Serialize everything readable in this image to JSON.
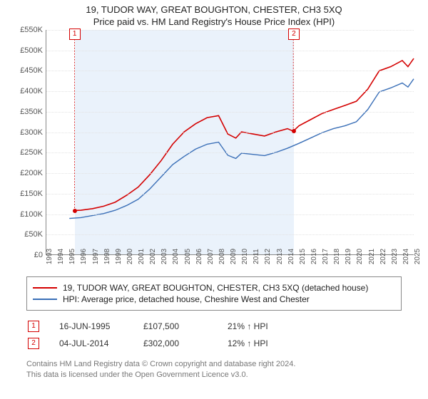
{
  "title_main": "19, TUDOR WAY, GREAT BOUGHTON, CHESTER, CH3 5XQ",
  "title_sub": "Price paid vs. HM Land Registry's House Price Index (HPI)",
  "chart": {
    "type": "line",
    "background_color": "#ffffff",
    "shaded_region_color": "#eaf2fb",
    "grid_color": "#e2e2e2",
    "axis_color": "#888888",
    "x_years": [
      1993,
      1994,
      1995,
      1996,
      1997,
      1998,
      1999,
      2000,
      2001,
      2002,
      2003,
      2004,
      2005,
      2006,
      2007,
      2008,
      2009,
      2010,
      2011,
      2012,
      2013,
      2014,
      2015,
      2016,
      2017,
      2018,
      2019,
      2020,
      2021,
      2022,
      2023,
      2024,
      2025
    ],
    "x_lim": [
      1993,
      2025
    ],
    "y_lim": [
      0,
      550000
    ],
    "y_tick_step": 50000,
    "y_tick_prefix": "£",
    "y_tick_suffix": "K",
    "x_label_fontsize": 10,
    "y_label_fontsize": 11,
    "shaded_region_x": [
      1995.46,
      2014.51
    ],
    "series": [
      {
        "name": "price_paid",
        "label": "19, TUDOR WAY, GREAT BOUGHTON, CHESTER, CH3 5XQ (detached house)",
        "color": "#d40000",
        "line_width": 1.6,
        "points": [
          [
            1995.46,
            107500
          ],
          [
            1996,
            108000
          ],
          [
            1997,
            112000
          ],
          [
            1998,
            118000
          ],
          [
            1999,
            128000
          ],
          [
            2000,
            145000
          ],
          [
            2001,
            165000
          ],
          [
            2002,
            195000
          ],
          [
            2003,
            230000
          ],
          [
            2004,
            270000
          ],
          [
            2005,
            300000
          ],
          [
            2006,
            320000
          ],
          [
            2007,
            335000
          ],
          [
            2008,
            340000
          ],
          [
            2008.8,
            295000
          ],
          [
            2009.5,
            285000
          ],
          [
            2010,
            300000
          ],
          [
            2011,
            295000
          ],
          [
            2012,
            290000
          ],
          [
            2013,
            300000
          ],
          [
            2014,
            308000
          ],
          [
            2014.51,
            302000
          ],
          [
            2015,
            315000
          ],
          [
            2016,
            330000
          ],
          [
            2017,
            345000
          ],
          [
            2018,
            355000
          ],
          [
            2019,
            365000
          ],
          [
            2020,
            375000
          ],
          [
            2021,
            405000
          ],
          [
            2022,
            450000
          ],
          [
            2023,
            460000
          ],
          [
            2024,
            475000
          ],
          [
            2024.5,
            460000
          ],
          [
            2025,
            480000
          ]
        ]
      },
      {
        "name": "hpi",
        "label": "HPI: Average price, detached house, Cheshire West and Chester",
        "color": "#3a6fb7",
        "line_width": 1.4,
        "points": [
          [
            1995,
            88000
          ],
          [
            1996,
            90000
          ],
          [
            1997,
            95000
          ],
          [
            1998,
            100000
          ],
          [
            1999,
            108000
          ],
          [
            2000,
            120000
          ],
          [
            2001,
            135000
          ],
          [
            2002,
            160000
          ],
          [
            2003,
            190000
          ],
          [
            2004,
            220000
          ],
          [
            2005,
            240000
          ],
          [
            2006,
            258000
          ],
          [
            2007,
            270000
          ],
          [
            2008,
            275000
          ],
          [
            2008.8,
            243000
          ],
          [
            2009.5,
            235000
          ],
          [
            2010,
            248000
          ],
          [
            2011,
            245000
          ],
          [
            2012,
            242000
          ],
          [
            2013,
            250000
          ],
          [
            2014,
            260000
          ],
          [
            2015,
            272000
          ],
          [
            2016,
            285000
          ],
          [
            2017,
            298000
          ],
          [
            2018,
            308000
          ],
          [
            2019,
            315000
          ],
          [
            2020,
            325000
          ],
          [
            2021,
            355000
          ],
          [
            2022,
            398000
          ],
          [
            2023,
            408000
          ],
          [
            2024,
            420000
          ],
          [
            2024.5,
            410000
          ],
          [
            2025,
            430000
          ]
        ]
      }
    ],
    "sale_markers": [
      {
        "n": "1",
        "x": 1995.46,
        "y": 107500,
        "color": "#d40000"
      },
      {
        "n": "2",
        "x": 2014.51,
        "y": 302000,
        "color": "#d40000"
      }
    ],
    "marker_label_top_y": 545000
  },
  "legend": {
    "border_color": "#888888",
    "fontsize": 12
  },
  "sales_table": {
    "rows": [
      {
        "n": "1",
        "date": "16-JUN-1995",
        "price": "£107,500",
        "delta": "21% ↑ HPI",
        "color": "#d40000"
      },
      {
        "n": "2",
        "date": "04-JUL-2014",
        "price": "£302,000",
        "delta": "12% ↑ HPI",
        "color": "#d40000"
      }
    ]
  },
  "footer_line1": "Contains HM Land Registry data © Crown copyright and database right 2024.",
  "footer_line2": "This data is licensed under the Open Government Licence v3.0."
}
